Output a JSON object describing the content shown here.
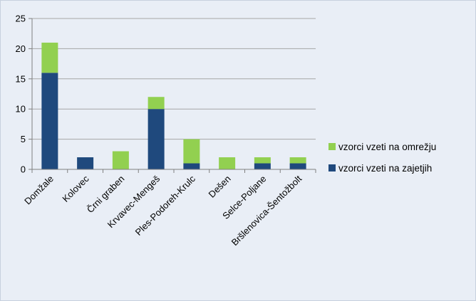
{
  "chart_data": {
    "type": "bar",
    "stacked": true,
    "categories": [
      "Domžale",
      "Kolovec",
      "Črni graben",
      "Krvavec-Mengeš",
      "Ples-Podoreh-Krulc",
      "Dešen",
      "Selce-Poljane",
      "Bršlenovica-Šentožbolt"
    ],
    "series": [
      {
        "name": "vzorci vzeti na zajetjih",
        "color": "#1f497d",
        "values": [
          16,
          2,
          0,
          10,
          1,
          0,
          1,
          1
        ]
      },
      {
        "name": "vzorci vzeti na omrežju",
        "color": "#92d050",
        "values": [
          5,
          0,
          3,
          2,
          4,
          2,
          1,
          1
        ]
      }
    ],
    "ylim": [
      0,
      25
    ],
    "yticks": [
      "0",
      "5",
      "10",
      "15",
      "20",
      "25"
    ],
    "grid": true,
    "legend_position": "right",
    "legend_order": [
      "vzorci vzeti na omrežju",
      "vzorci vzeti na zajetjih"
    ],
    "title": "",
    "xlabel": "",
    "ylabel": ""
  }
}
